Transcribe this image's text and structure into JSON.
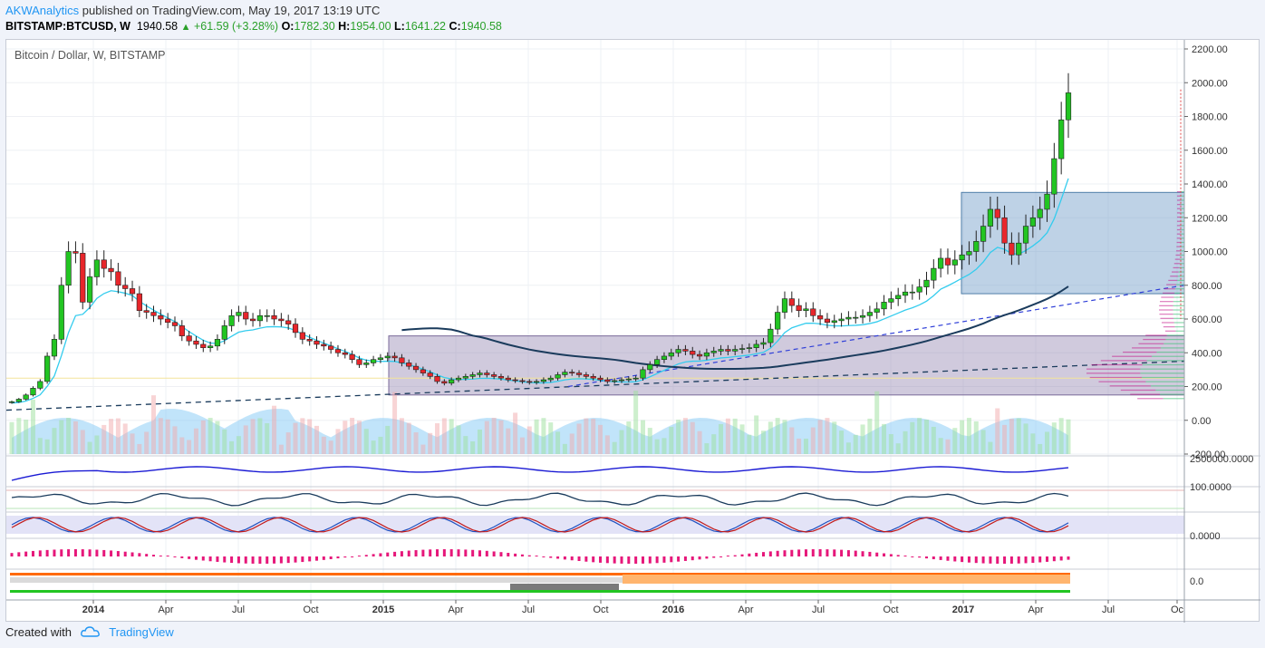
{
  "header": {
    "author": "AKWAnalytics",
    "published": "published on TradingView.com, May 19, 2017 13:19 UTC",
    "symbol": "BITSTAMP:BTCUSD, W",
    "last": "1940.58",
    "change": "+61.59 (+3.28%)",
    "o_label": "O:",
    "o_val": "1782.30",
    "h_label": "H:",
    "h_val": "1954.00",
    "l_label": "L:",
    "l_val": "1641.22",
    "c_label": "C:",
    "c_val": "1940.58"
  },
  "footer": {
    "created_with": "Created with",
    "brand": "TradingView"
  },
  "colors": {
    "up": "#22c522",
    "down": "#e8262b",
    "ema": "#33ccee",
    "sma": "#1a3b5c",
    "trend_blue": "#2f3fd8",
    "box_blue": "#6f9cc7",
    "box_purple": "#8a7aaa",
    "volume": "#8ecdf5",
    "hist": "#e6177a",
    "rsi_line": "#1a3b5c",
    "stoch_k": "#1f4fbf",
    "stoch_d": "#c21a1a"
  },
  "chart_data": {
    "type": "candlestick",
    "title": "Bitcoin / Dollar, W, BITSTAMP",
    "x_ticks": [
      "2014",
      "Apr",
      "Jul",
      "Oct",
      "2015",
      "Apr",
      "Jul",
      "Oct",
      "2016",
      "Apr",
      "Jul",
      "Oct",
      "2017",
      "Apr",
      "Jul",
      "Oc"
    ],
    "y_ticks": [
      "2200.00",
      "2000.00",
      "1800.00",
      "1600.00",
      "1400.00",
      "1200.00",
      "1000.00",
      "800.00",
      "600.00",
      "400.00",
      "200.00",
      "0.00",
      "-200.00"
    ],
    "ylim": [
      -200,
      2200
    ],
    "pane_labels": [
      "2500000.0000",
      "100.0000",
      "0.0000",
      "0.0"
    ],
    "weekly_close_approx": [
      110,
      125,
      150,
      190,
      230,
      380,
      480,
      800,
      1000,
      990,
      700,
      850,
      950,
      900,
      880,
      800,
      780,
      750,
      650,
      640,
      620,
      600,
      580,
      560,
      500,
      470,
      450,
      430,
      440,
      480,
      560,
      620,
      640,
      600,
      590,
      620,
      620,
      600,
      590,
      570,
      520,
      480,
      470,
      450,
      440,
      420,
      400,
      390,
      360,
      330,
      340,
      360,
      370,
      380,
      370,
      340,
      320,
      300,
      280,
      260,
      230,
      220,
      240,
      250,
      260,
      270,
      280,
      270,
      260,
      250,
      240,
      235,
      230,
      225,
      230,
      240,
      250,
      270,
      285,
      280,
      270,
      260,
      250,
      240,
      230,
      235,
      240,
      245,
      250,
      300,
      330,
      360,
      380,
      400,
      420,
      410,
      390,
      380,
      400,
      410,
      420,
      410,
      420,
      425,
      430,
      450,
      460,
      540,
      640,
      720,
      680,
      650,
      660,
      620,
      600,
      580,
      590,
      600,
      610,
      610,
      620,
      640,
      660,
      700,
      720,
      740,
      760,
      760,
      790,
      830,
      900,
      960,
      920,
      950,
      980,
      1000,
      1060,
      1150,
      1250,
      1200,
      1050,
      980,
      1050,
      1150,
      1200,
      1250,
      1340,
      1550,
      1780,
      1940
    ]
  }
}
